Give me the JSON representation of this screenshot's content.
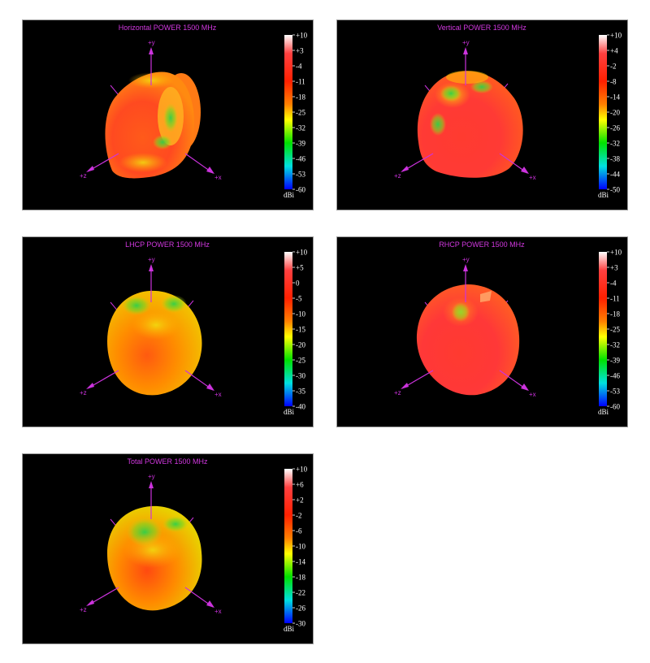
{
  "charts": [
    {
      "title": "Horizontal POWER 1500  MHz",
      "unit": "dBi",
      "axes": {
        "y": "+y",
        "z": "+z",
        "x": "+x"
      },
      "scale_ticks": [
        "+10",
        "+3",
        "-4",
        "-11",
        "-18",
        "-25",
        "-32",
        "-39",
        "-46",
        "-53",
        "-60"
      ]
    },
    {
      "title": "Vertical POWER 1500  MHz",
      "unit": "dBi",
      "axes": {
        "y": "+y",
        "z": "+z",
        "x": "+x"
      },
      "scale_ticks": [
        "+10",
        "+4",
        "-2",
        "-8",
        "-14",
        "-20",
        "-26",
        "-32",
        "-38",
        "-44",
        "-50"
      ]
    },
    {
      "title": "LHCP POWER 1500  MHz",
      "unit": "dBi",
      "axes": {
        "y": "+y",
        "z": "+z",
        "x": "+x"
      },
      "scale_ticks": [
        "+10",
        "+5",
        "0",
        "-5",
        "-10",
        "-15",
        "-20",
        "-25",
        "-30",
        "-35",
        "-40"
      ]
    },
    {
      "title": "RHCP POWER 1500  MHz",
      "unit": "dBi",
      "axes": {
        "y": "+y",
        "z": "+z",
        "x": "+x"
      },
      "scale_ticks": [
        "+10",
        "+3",
        "-4",
        "-11",
        "-18",
        "-25",
        "-32",
        "-39",
        "-46",
        "-53",
        "-60"
      ]
    },
    {
      "title": "Total POWER 1500  MHz",
      "unit": "dBi",
      "axes": {
        "y": "+y",
        "z": "+z",
        "x": "+x"
      },
      "scale_ticks": [
        "+10",
        "+6",
        "+2",
        "-2",
        "-6",
        "-10",
        "-14",
        "-18",
        "-22",
        "-26",
        "-30"
      ]
    }
  ],
  "colors": {
    "panel_background": "#000000",
    "axis_color": "#cc33dd",
    "tick_color": "#ffffff",
    "colorbar_stops": [
      "#ffffff",
      "#ff4040",
      "#ff2000",
      "#ff8000",
      "#ffff00",
      "#00e000",
      "#00e0e0",
      "#0000ff"
    ]
  },
  "chart_data": [
    {
      "type": "heatmap",
      "title": "Horizontal POWER 1500  MHz",
      "colorbar_label": "dBi",
      "colorbar_range": [
        -60,
        10
      ],
      "colorbar_ticks": [
        10,
        3,
        -4,
        -11,
        -18,
        -25,
        -32,
        -39,
        -46,
        -53,
        -60
      ]
    },
    {
      "type": "heatmap",
      "title": "Vertical POWER 1500  MHz",
      "colorbar_label": "dBi",
      "colorbar_range": [
        -50,
        10
      ],
      "colorbar_ticks": [
        10,
        4,
        -2,
        -8,
        -14,
        -20,
        -26,
        -32,
        -38,
        -44,
        -50
      ]
    },
    {
      "type": "heatmap",
      "title": "LHCP POWER 1500  MHz",
      "colorbar_label": "dBi",
      "colorbar_range": [
        -40,
        10
      ],
      "colorbar_ticks": [
        10,
        5,
        0,
        -5,
        -10,
        -15,
        -20,
        -25,
        -30,
        -35,
        -40
      ]
    },
    {
      "type": "heatmap",
      "title": "RHCP POWER 1500  MHz",
      "colorbar_label": "dBi",
      "colorbar_range": [
        -60,
        10
      ],
      "colorbar_ticks": [
        10,
        3,
        -4,
        -11,
        -18,
        -25,
        -32,
        -39,
        -46,
        -53,
        -60
      ]
    },
    {
      "type": "heatmap",
      "title": "Total POWER 1500  MHz",
      "colorbar_label": "dBi",
      "colorbar_range": [
        -30,
        10
      ],
      "colorbar_ticks": [
        10,
        6,
        2,
        -2,
        -6,
        -10,
        -14,
        -18,
        -22,
        -26,
        -30
      ]
    }
  ]
}
